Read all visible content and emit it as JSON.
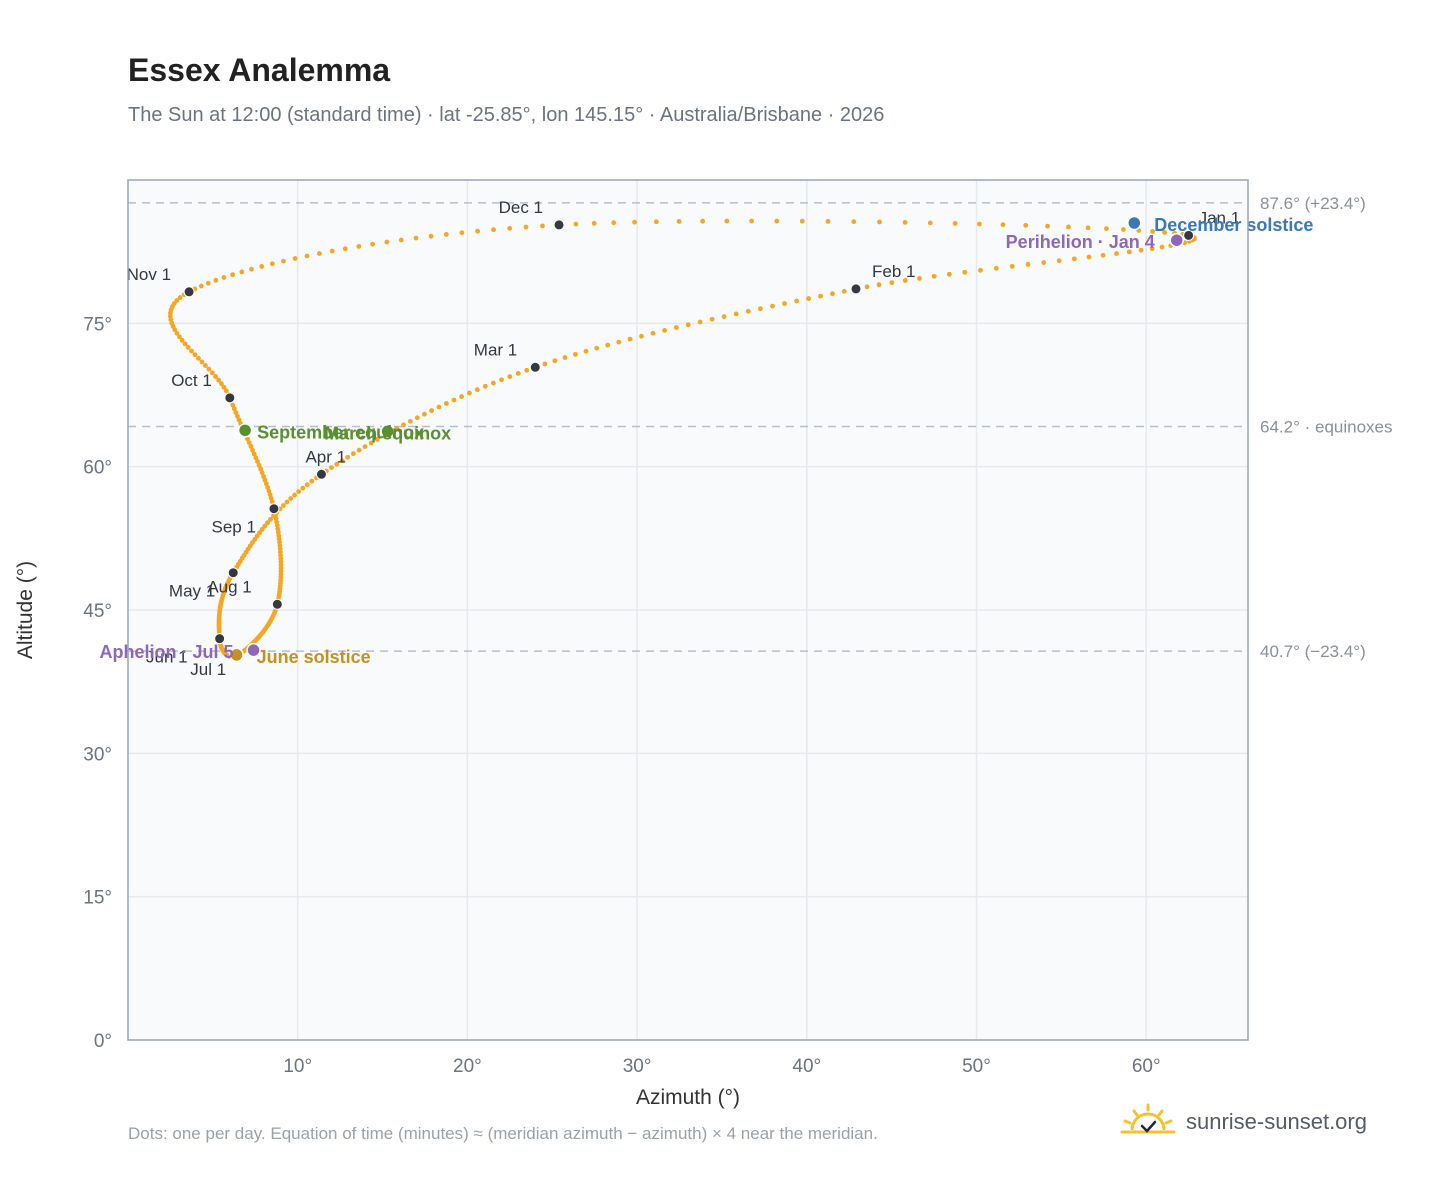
{
  "header": {
    "title": "Essex Analemma",
    "subtitle": "The Sun at 12:00 (standard time) · lat -25.85°, lon 145.15° · Australia/Brisbane · 2026"
  },
  "footer": {
    "note": "Dots: one per day. Equation of time (minutes) ≈ (meridian azimuth − azimuth) × 4 near the meridian.",
    "brand": "sunrise-sunset.org",
    "brand_icon": "sun-horizon-icon"
  },
  "colors": {
    "path": "#f5a623",
    "month_dot": "#333842",
    "equinox": "#5a8f2e",
    "december_solstice": "#3a78b8",
    "june_solstice": "#c8911e",
    "apsis": "#8e68b8",
    "grid": "#e6e9ee",
    "plot_bg": "#f8fafc",
    "frame": "#9aa5b4"
  },
  "chart_data": {
    "type": "scatter",
    "xlabel": "Azimuth (°)",
    "ylabel": "Altitude (°)",
    "xlim": [
      0,
      66
    ],
    "ylim": [
      0,
      90
    ],
    "x_ticks": [
      10,
      20,
      30,
      40,
      50,
      60
    ],
    "x_tick_labels": [
      "10°",
      "20°",
      "30°",
      "40°",
      "50°",
      "60°"
    ],
    "y_ticks": [
      0,
      15,
      30,
      45,
      60,
      75
    ],
    "y_tick_labels": [
      "0°",
      "15°",
      "30°",
      "45°",
      "60°",
      "75°"
    ],
    "grid": true,
    "reference_lines": [
      {
        "y": 87.6,
        "label": "87.6° (+23.4°)"
      },
      {
        "y": 64.2,
        "label": "64.2° · equinoxes"
      },
      {
        "y": 40.7,
        "label": "40.7° (−23.4°)"
      }
    ],
    "month_points": [
      {
        "label": "Jan 1",
        "x": 62.5,
        "y": 84.2
      },
      {
        "label": "Feb 1",
        "x": 42.9,
        "y": 78.6
      },
      {
        "label": "Mar 1",
        "x": 24.0,
        "y": 70.4
      },
      {
        "label": "Apr 1",
        "x": 11.4,
        "y": 59.2
      },
      {
        "label": "May 1",
        "x": 6.2,
        "y": 48.9
      },
      {
        "label": "Jun 1",
        "x": 5.4,
        "y": 42.0
      },
      {
        "label": "Jul 1",
        "x": 6.5,
        "y": 40.3
      },
      {
        "label": "Aug 1",
        "x": 8.8,
        "y": 45.6
      },
      {
        "label": "Sep 1",
        "x": 8.6,
        "y": 55.6
      },
      {
        "label": "Oct 1",
        "x": 6.0,
        "y": 67.2
      },
      {
        "label": "Nov 1",
        "x": 3.6,
        "y": 78.3
      },
      {
        "label": "Dec 1",
        "x": 25.4,
        "y": 85.3
      }
    ],
    "events": [
      {
        "label": "March equinox",
        "x": 15.3,
        "y": 63.7,
        "color_key": "equinox"
      },
      {
        "label": "September equinox",
        "x": 6.9,
        "y": 63.8,
        "color_key": "equinox"
      },
      {
        "label": "December solstice",
        "x": 59.3,
        "y": 85.5,
        "color_key": "december_solstice"
      },
      {
        "label": "June solstice",
        "x": 6.4,
        "y": 40.3,
        "color_key": "june_solstice"
      },
      {
        "label": "Perihelion · Jan 4",
        "x": 61.8,
        "y": 83.7,
        "color_key": "apsis"
      },
      {
        "label": "Aphelion · Jul 5",
        "x": 7.4,
        "y": 40.8,
        "color_key": "apsis"
      }
    ]
  }
}
